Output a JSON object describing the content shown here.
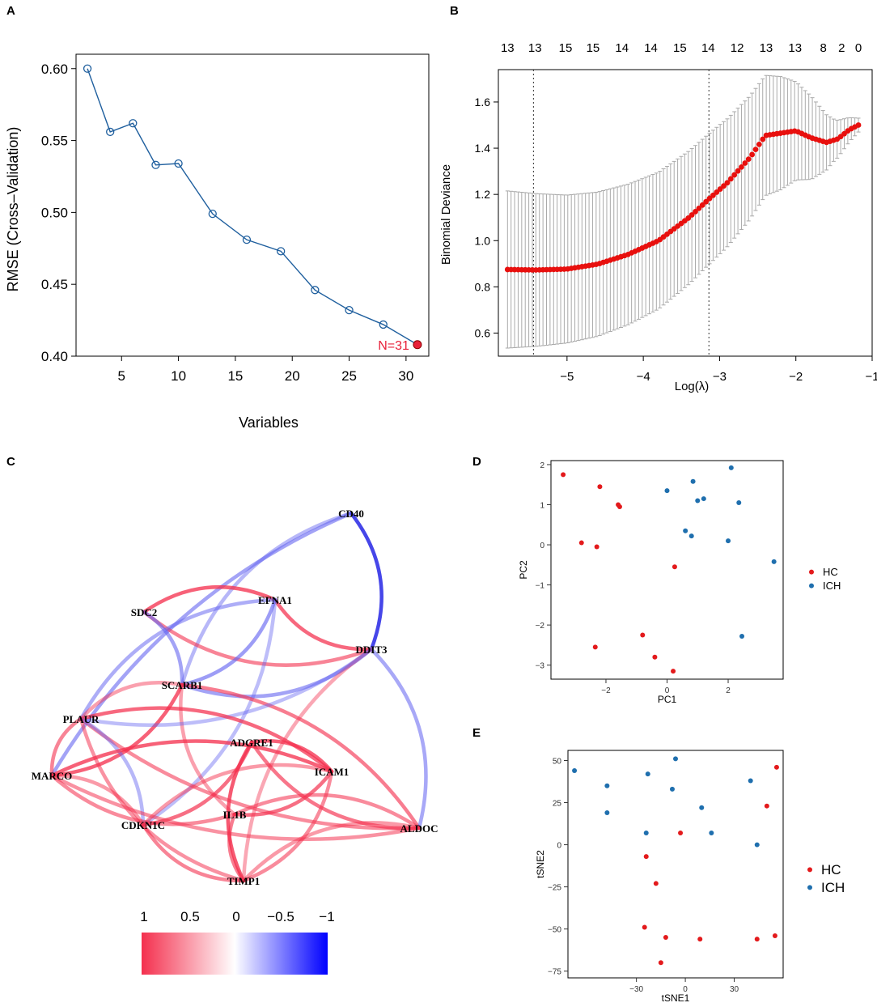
{
  "chart_data": [
    {
      "id": "A",
      "panel_label": "A",
      "type": "line",
      "xlabel": "Variables",
      "ylabel": "RMSE (Cross–Validation)",
      "xlim": [
        1,
        32
      ],
      "ylim": [
        0.4,
        0.61
      ],
      "xticks": [
        5,
        10,
        15,
        20,
        25,
        30
      ],
      "yticks": [
        0.4,
        0.45,
        0.5,
        0.55,
        0.6
      ],
      "ytick_labels": [
        "0.40",
        "0.45",
        "0.50",
        "0.55",
        "0.60"
      ],
      "x": [
        2,
        4,
        6,
        8,
        10,
        13,
        16,
        19,
        22,
        25,
        28,
        31
      ],
      "y": [
        0.6,
        0.556,
        0.562,
        0.533,
        0.534,
        0.499,
        0.481,
        0.473,
        0.446,
        0.432,
        0.422,
        0.408
      ],
      "color": "#1f5f9e",
      "highlight": {
        "x": 31,
        "y": 0.408,
        "label": "N=31",
        "color": "#e8213a"
      }
    },
    {
      "id": "B",
      "panel_label": "B",
      "type": "scatter",
      "xlabel": "Log(λ)",
      "ylabel": "Binomial Deviance",
      "xlim": [
        -5.9,
        -1.0
      ],
      "ylim": [
        0.5,
        1.74
      ],
      "xticks": [
        -5,
        -4,
        -3,
        -2,
        -1
      ],
      "xtick_labels": [
        "−5",
        "−4",
        "−3",
        "−2",
        "−1"
      ],
      "yticks": [
        0.6,
        0.8,
        1.0,
        1.2,
        1.4,
        1.6
      ],
      "ytick_labels": [
        "0.6",
        "0.8",
        "1.0",
        "1.2",
        "1.4",
        "1.6"
      ],
      "top_axis_x": [
        -5.78,
        -5.42,
        -5.02,
        -4.66,
        -4.28,
        -3.9,
        -3.52,
        -3.15,
        -2.77,
        -2.39,
        -2.01,
        -1.64,
        -1.4,
        -1.18
      ],
      "top_axis_labels": [
        "13",
        "13",
        "15",
        "15",
        "14",
        "14",
        "15",
        "14",
        "12",
        "13",
        "13",
        "8",
        "2",
        "0"
      ],
      "vlines": [
        -5.44,
        -3.14
      ],
      "lambda_start": -5.78,
      "lambda_end": -1.18,
      "n_points": 100,
      "curve_knots": [
        [
          -5.78,
          0.875
        ],
        [
          -5.4,
          0.873
        ],
        [
          -5.0,
          0.877
        ],
        [
          -4.6,
          0.898
        ],
        [
          -4.2,
          0.94
        ],
        [
          -3.8,
          1.0
        ],
        [
          -3.4,
          1.1
        ],
        [
          -3.14,
          1.18
        ],
        [
          -2.9,
          1.25
        ],
        [
          -2.6,
          1.36
        ],
        [
          -2.4,
          1.455
        ],
        [
          -2.2,
          1.465
        ],
        [
          -2.0,
          1.475
        ],
        [
          -1.8,
          1.445
        ],
        [
          -1.6,
          1.425
        ],
        [
          -1.45,
          1.44
        ],
        [
          -1.3,
          1.48
        ],
        [
          -1.18,
          1.5
        ]
      ],
      "se_knots": [
        [
          -5.78,
          0.34
        ],
        [
          -5.0,
          0.32
        ],
        [
          -4.0,
          0.3
        ],
        [
          -3.0,
          0.28
        ],
        [
          -2.4,
          0.26
        ],
        [
          -2.2,
          0.245
        ],
        [
          -1.8,
          0.18
        ],
        [
          -1.5,
          0.09
        ],
        [
          -1.18,
          0.03
        ]
      ],
      "point_color": "#e8100e",
      "bar_color": "#aaaaaa"
    },
    {
      "id": "D",
      "panel_label": "D",
      "type": "scatter",
      "xlabel": "PC1",
      "ylabel": "PC2",
      "xlim": [
        -3.8,
        3.8
      ],
      "ylim": [
        -3.35,
        2.1
      ],
      "xticks": [
        -2,
        0,
        2
      ],
      "xtick_labels": [
        "−2",
        "0",
        "2"
      ],
      "yticks": [
        -3,
        -2,
        -1,
        0,
        1,
        2
      ],
      "ytick_labels": [
        "−3",
        "−2",
        "−1",
        "0",
        "1",
        "2"
      ],
      "legend": [
        {
          "name": "HC",
          "color": "#e31a1c"
        },
        {
          "name": "ICH",
          "color": "#1f6fae"
        }
      ],
      "series": [
        {
          "name": "HC",
          "points": [
            [
              -3.4,
              1.75
            ],
            [
              -2.2,
              1.45
            ],
            [
              -1.6,
              1.0
            ],
            [
              -1.55,
              0.95
            ],
            [
              -2.8,
              0.05
            ],
            [
              -2.3,
              -0.05
            ],
            [
              0.25,
              -0.55
            ],
            [
              -0.8,
              -2.25
            ],
            [
              -2.35,
              -2.55
            ],
            [
              -0.4,
              -2.8
            ],
            [
              0.2,
              -3.15
            ]
          ]
        },
        {
          "name": "ICH",
          "points": [
            [
              0.0,
              1.35
            ],
            [
              0.85,
              1.58
            ],
            [
              1.2,
              1.15
            ],
            [
              1.0,
              1.1
            ],
            [
              2.1,
              1.92
            ],
            [
              2.35,
              1.05
            ],
            [
              0.6,
              0.35
            ],
            [
              0.8,
              0.22
            ],
            [
              2.0,
              0.1
            ],
            [
              3.5,
              -0.42
            ],
            [
              2.45,
              -2.28
            ]
          ]
        }
      ]
    },
    {
      "id": "E",
      "panel_label": "E",
      "type": "scatter",
      "xlabel": "tSNE1",
      "ylabel": "tSNE2",
      "xlim": [
        -72,
        60
      ],
      "ylim": [
        -79,
        56
      ],
      "xticks": [
        -30,
        0,
        30
      ],
      "xtick_labels": [
        "−30",
        "0",
        "30"
      ],
      "yticks": [
        -75,
        -50,
        -25,
        0,
        25,
        50
      ],
      "ytick_labels": [
        "−75",
        "−50",
        "−25",
        "0",
        "25",
        "50"
      ],
      "legend": [
        {
          "name": "HC",
          "color": "#e31a1c"
        },
        {
          "name": "ICH",
          "color": "#1f6fae"
        }
      ],
      "series": [
        {
          "name": "HC",
          "points": [
            [
              56,
              46
            ],
            [
              50,
              23
            ],
            [
              -3,
              7
            ],
            [
              -24,
              -7
            ],
            [
              -18,
              -23
            ],
            [
              -25,
              -49
            ],
            [
              -12,
              -55
            ],
            [
              9,
              -56
            ],
            [
              44,
              -56
            ],
            [
              55,
              -54
            ],
            [
              -15,
              -70
            ]
          ]
        },
        {
          "name": "ICH",
          "points": [
            [
              -68,
              44
            ],
            [
              -48,
              35
            ],
            [
              -48,
              19
            ],
            [
              -23,
              42
            ],
            [
              -6,
              51
            ],
            [
              -8,
              33
            ],
            [
              10,
              22
            ],
            [
              16,
              7
            ],
            [
              -24,
              7
            ],
            [
              40,
              38
            ],
            [
              44,
              0
            ]
          ]
        }
      ]
    }
  ],
  "network": {
    "panel_label": "C",
    "nodes": [
      {
        "id": "CD40",
        "label": "CD40"
      },
      {
        "id": "EFNA1",
        "label": "EFNA1"
      },
      {
        "id": "SDC2",
        "label": "SDC2"
      },
      {
        "id": "DDIT3",
        "label": "DDIT3"
      },
      {
        "id": "SCARB1",
        "label": "SCARB1"
      },
      {
        "id": "PLAUR",
        "label": "PLAUR"
      },
      {
        "id": "ADGRE1",
        "label": "ADGRE1"
      },
      {
        "id": "ICAM1",
        "label": "ICAM1"
      },
      {
        "id": "MARCO",
        "label": "MARCO"
      },
      {
        "id": "IL1B",
        "label": "IL1B"
      },
      {
        "id": "CDKN1C",
        "label": "CDKN1C"
      },
      {
        "id": "ALDOC",
        "label": "ALDOC"
      },
      {
        "id": "TIMP1",
        "label": "TIMP1"
      }
    ],
    "edges": [
      {
        "from": "CD40",
        "to": "MARCO",
        "r": -0.55
      },
      {
        "from": "CD40",
        "to": "DDIT3",
        "r": -0.95
      },
      {
        "from": "CD40",
        "to": "SCARB1",
        "r": -0.35
      },
      {
        "from": "SDC2",
        "to": "EFNA1",
        "r": 0.8
      },
      {
        "from": "SDC2",
        "to": "DDIT3",
        "r": 0.55
      },
      {
        "from": "SDC2",
        "to": "SCARB1",
        "r": -0.55
      },
      {
        "from": "EFNA1",
        "to": "DDIT3",
        "r": 0.75
      },
      {
        "from": "EFNA1",
        "to": "SCARB1",
        "r": -0.6
      },
      {
        "from": "EFNA1",
        "to": "PLAUR",
        "r": -0.45
      },
      {
        "from": "EFNA1",
        "to": "CDKN1C",
        "r": -0.3
      },
      {
        "from": "SCARB1",
        "to": "DDIT3",
        "r": -0.55
      },
      {
        "from": "SCARB1",
        "to": "MARCO",
        "r": 0.8
      },
      {
        "from": "SCARB1",
        "to": "PLAUR",
        "r": 0.35
      },
      {
        "from": "SCARB1",
        "to": "ALDOC",
        "r": 0.6
      },
      {
        "from": "SCARB1",
        "to": "IL1B",
        "r": 0.35
      },
      {
        "from": "DDIT3",
        "to": "ALDOC",
        "r": -0.5
      },
      {
        "from": "DDIT3",
        "to": "TIMP1",
        "r": 0.3
      },
      {
        "from": "DDIT3",
        "to": "PLAUR",
        "r": -0.3
      },
      {
        "from": "PLAUR",
        "to": "MARCO",
        "r": 0.55
      },
      {
        "from": "PLAUR",
        "to": "ICAM1",
        "r": 0.75
      },
      {
        "from": "PLAUR",
        "to": "ALDOC",
        "r": 0.5
      },
      {
        "from": "PLAUR",
        "to": "CDKN1C",
        "r": -0.35
      },
      {
        "from": "PLAUR",
        "to": "TIMP1",
        "r": 0.45
      },
      {
        "from": "MARCO",
        "to": "ICAM1",
        "r": 0.8
      },
      {
        "from": "MARCO",
        "to": "IL1B",
        "r": 0.5
      },
      {
        "from": "MARCO",
        "to": "CDKN1C",
        "r": 0.4
      },
      {
        "from": "MARCO",
        "to": "ALDOC",
        "r": 0.45
      },
      {
        "from": "ADGRE1",
        "to": "ICAM1",
        "r": 0.8
      },
      {
        "from": "ADGRE1",
        "to": "TIMP1",
        "r": 0.85
      },
      {
        "from": "ADGRE1",
        "to": "CDKN1C",
        "r": 0.7
      },
      {
        "from": "ADGRE1",
        "to": "ALDOC",
        "r": 0.65
      },
      {
        "from": "ICAM1",
        "to": "IL1B",
        "r": 0.7
      },
      {
        "from": "ICAM1",
        "to": "CDKN1C",
        "r": 0.4
      },
      {
        "from": "ICAM1",
        "to": "TIMP1",
        "r": 0.5
      },
      {
        "from": "IL1B",
        "to": "TIMP1",
        "r": 0.6
      },
      {
        "from": "IL1B",
        "to": "ALDOC",
        "r": 0.5
      },
      {
        "from": "CDKN1C",
        "to": "TIMP1",
        "r": 0.55
      },
      {
        "from": "TIMP1",
        "to": "ALDOC",
        "r": 0.4
      }
    ],
    "colorbar": {
      "tick_labels": [
        "1",
        "0.5",
        "0",
        "−0.5",
        "−1"
      ],
      "colors": [
        "#f4304e",
        "#ffffff",
        "#0000ff"
      ]
    }
  }
}
